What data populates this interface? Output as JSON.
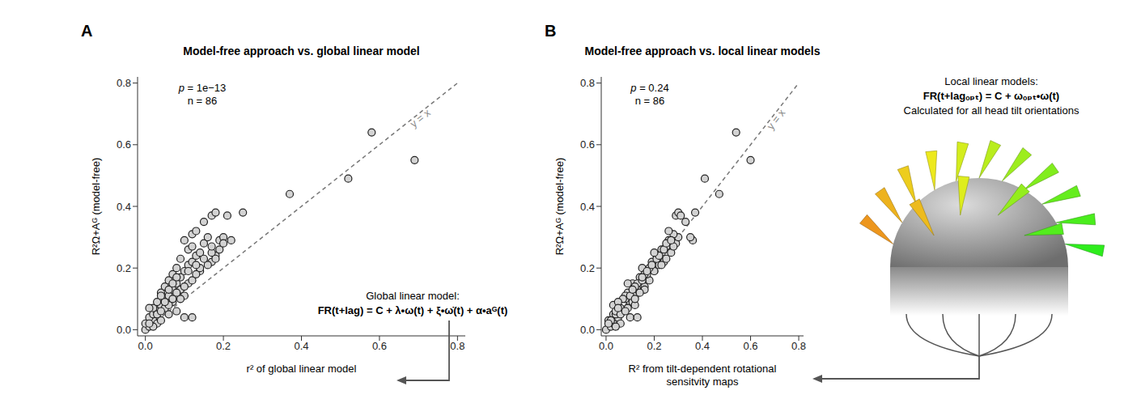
{
  "chart_data": [
    {
      "panel": "A",
      "type": "scatter",
      "title": "Model-free approach vs. global linear model",
      "xlabel": "r² of global linear model",
      "ylabel": "R²Ω+Aᴳ (model-free)",
      "x": [
        0.0,
        0.01,
        0.0,
        0.02,
        0.01,
        0.02,
        0.03,
        0.02,
        0.04,
        0.03,
        0.05,
        0.06,
        0.12,
        0.06,
        0.03,
        0.04,
        0.07,
        0.05,
        0.08,
        0.06,
        0.09,
        0.07,
        0.1,
        0.08,
        0.11,
        0.12,
        0.09,
        0.13,
        0.14,
        0.11,
        0.12,
        0.15,
        0.1,
        0.16,
        0.12,
        0.17,
        0.18,
        0.21,
        0.25,
        0.19,
        0.2,
        0.37,
        0.52,
        0.58,
        0.69,
        0.17,
        0.14,
        0.11,
        0.09,
        0.1,
        0.07,
        0.05,
        0.08,
        0.06,
        0.09,
        0.08,
        0.1,
        0.12,
        0.13,
        0.14,
        0.16,
        0.15,
        0.18,
        0.17,
        0.19,
        0.2,
        0.1,
        0.04,
        0.02,
        0.03,
        0.05,
        0.04,
        0.06,
        0.08,
        0.11,
        0.13,
        0.17,
        0.13,
        0.22,
        0.18,
        0.07,
        0.01,
        0.01,
        0.04,
        0.07,
        0.15
      ],
      "y": [
        0.0,
        0.01,
        0.02,
        0.03,
        0.04,
        0.05,
        0.06,
        0.07,
        0.08,
        0.09,
        0.1,
        0.11,
        0.04,
        0.05,
        0.02,
        0.12,
        0.13,
        0.14,
        0.15,
        0.16,
        0.17,
        0.18,
        0.19,
        0.2,
        0.21,
        0.22,
        0.23,
        0.24,
        0.25,
        0.26,
        0.27,
        0.28,
        0.29,
        0.3,
        0.31,
        0.37,
        0.38,
        0.37,
        0.38,
        0.29,
        0.3,
        0.44,
        0.49,
        0.64,
        0.55,
        0.22,
        0.19,
        0.15,
        0.13,
        0.11,
        0.09,
        0.07,
        0.06,
        0.08,
        0.1,
        0.12,
        0.14,
        0.16,
        0.18,
        0.2,
        0.21,
        0.23,
        0.24,
        0.25,
        0.26,
        0.28,
        0.04,
        0.03,
        0.01,
        0.05,
        0.09,
        0.11,
        0.13,
        0.17,
        0.19,
        0.21,
        0.27,
        0.32,
        0.29,
        0.23,
        0.15,
        0.07,
        0.02,
        0.06,
        0.1,
        0.35
      ],
      "xlim": [
        -0.02,
        0.82
      ],
      "ylim": [
        -0.02,
        0.82
      ],
      "xticks": [
        {
          "value": 0,
          "label": "0.0"
        },
        {
          "value": 0.2,
          "label": "0.2"
        },
        {
          "value": 0.4,
          "label": "0.4"
        },
        {
          "value": 0.6,
          "label": "0.6"
        },
        {
          "value": 0.8,
          "label": "0.8"
        }
      ],
      "yticks": [
        {
          "value": 0,
          "label": "0.0"
        },
        {
          "value": 0.2,
          "label": "0.2"
        },
        {
          "value": 0.4,
          "label": "0.4"
        },
        {
          "value": 0.6,
          "label": "0.6"
        },
        {
          "value": 0.8,
          "label": "0.8"
        }
      ],
      "color": "#d3d3d3",
      "marker": "circle",
      "annotations": [
        "p = 1e−13",
        "n = 86"
      ],
      "reference_line": {
        "label": "y = x",
        "slope": 1,
        "intercept": 0,
        "line_style": "dashed"
      },
      "model": {
        "heading": "Global linear model:",
        "formula": "FR(t+lag) = C + λ•ω(t) + ξ•ω̇(t) + α•aᴳ(t)"
      }
    },
    {
      "panel": "B",
      "type": "scatter",
      "title": "Model-free approach vs. local linear models",
      "xlabel": "R² from tilt-dependent rotational sensitvity maps",
      "ylabel": "R²Ω+Aᴳ (model-free)",
      "x": [
        0.0,
        0.02,
        0.03,
        0.01,
        0.05,
        0.03,
        0.07,
        0.06,
        0.03,
        0.1,
        0.08,
        0.12,
        0.1,
        0.04,
        0.06,
        0.09,
        0.13,
        0.16,
        0.11,
        0.18,
        0.14,
        0.17,
        0.2,
        0.15,
        0.22,
        0.19,
        0.24,
        0.21,
        0.27,
        0.23,
        0.25,
        0.29,
        0.26,
        0.3,
        0.28,
        0.29,
        0.3,
        0.31,
        0.37,
        0.36,
        0.35,
        0.47,
        0.41,
        0.54,
        0.6,
        0.24,
        0.2,
        0.13,
        0.16,
        0.08,
        0.11,
        0.09,
        0.04,
        0.12,
        0.07,
        0.14,
        0.12,
        0.15,
        0.16,
        0.18,
        0.19,
        0.21,
        0.22,
        0.2,
        0.24,
        0.25,
        0.13,
        0.02,
        0.04,
        0.06,
        0.05,
        0.1,
        0.11,
        0.15,
        0.17,
        0.23,
        0.28,
        0.26,
        0.27,
        0.25,
        0.09,
        0.05,
        0.01,
        0.08,
        0.12,
        0.33
      ],
      "y": [
        0.0,
        0.01,
        0.02,
        0.03,
        0.04,
        0.05,
        0.06,
        0.07,
        0.08,
        0.09,
        0.1,
        0.11,
        0.04,
        0.05,
        0.02,
        0.12,
        0.13,
        0.14,
        0.15,
        0.16,
        0.17,
        0.18,
        0.19,
        0.2,
        0.21,
        0.22,
        0.23,
        0.24,
        0.25,
        0.26,
        0.27,
        0.28,
        0.29,
        0.3,
        0.31,
        0.37,
        0.38,
        0.37,
        0.38,
        0.29,
        0.3,
        0.44,
        0.49,
        0.64,
        0.55,
        0.22,
        0.19,
        0.15,
        0.13,
        0.11,
        0.09,
        0.07,
        0.06,
        0.08,
        0.1,
        0.12,
        0.14,
        0.16,
        0.18,
        0.2,
        0.21,
        0.23,
        0.24,
        0.25,
        0.26,
        0.28,
        0.04,
        0.03,
        0.01,
        0.05,
        0.09,
        0.11,
        0.13,
        0.17,
        0.19,
        0.21,
        0.27,
        0.32,
        0.29,
        0.23,
        0.15,
        0.07,
        0.02,
        0.06,
        0.1,
        0.35
      ],
      "xlim": [
        -0.02,
        0.82
      ],
      "ylim": [
        -0.02,
        0.82
      ],
      "xticks": [
        {
          "value": 0,
          "label": "0.0"
        },
        {
          "value": 0.2,
          "label": "0.2"
        },
        {
          "value": 0.4,
          "label": "0.4"
        },
        {
          "value": 0.6,
          "label": "0.6"
        },
        {
          "value": 0.8,
          "label": "0.8"
        }
      ],
      "yticks": [
        {
          "value": 0,
          "label": "0.0"
        },
        {
          "value": 0.2,
          "label": "0.2"
        },
        {
          "value": 0.4,
          "label": "0.4"
        },
        {
          "value": 0.6,
          "label": "0.6"
        },
        {
          "value": 0.8,
          "label": "0.8"
        }
      ],
      "color": "#d3d3d3",
      "marker": "circle",
      "annotations": [
        "p = 0.24",
        "n = 86"
      ],
      "reference_line": {
        "label": "y = x",
        "slope": 1,
        "intercept": 0,
        "line_style": "dashed"
      },
      "model": {
        "heading": "Local linear models:",
        "formula": "FR(t+lagₒₚₜ) = C + ωₒₚₜ•ω(t)",
        "note": "Calculated for all head tilt orientations"
      }
    }
  ]
}
